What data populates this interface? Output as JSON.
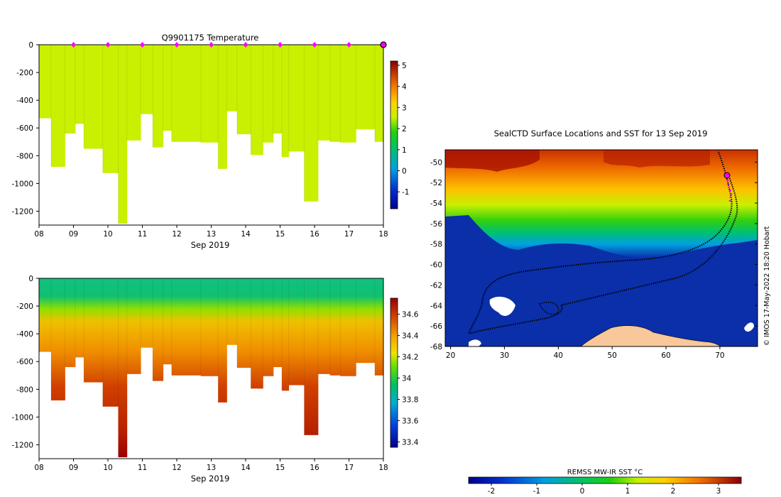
{
  "chart_data": [
    {
      "type": "heatmap",
      "title": "Q9901175  Temperature",
      "xlabel": "Sep 2019",
      "x_ticks": [
        "08",
        "09",
        "10",
        "11",
        "12",
        "13",
        "14",
        "15",
        "16",
        "17",
        "18"
      ],
      "xlim": [
        8,
        18
      ],
      "ylim": [
        -1300,
        0
      ],
      "y_ticks": [
        0,
        -200,
        -400,
        -600,
        -800,
        -1000,
        -1200
      ],
      "colorbar": {
        "ticks": [
          5,
          4,
          3,
          2,
          1,
          0,
          -1
        ],
        "range": [
          -1.8,
          5.2
        ]
      },
      "markers_x": [
        9,
        10,
        11,
        12,
        13,
        14,
        15,
        16,
        17
      ],
      "current_profile_x": 18,
      "profiles": [
        {
          "day": 8.0,
          "depth": 530
        },
        {
          "day": 8.35,
          "depth": 880
        },
        {
          "day": 8.75,
          "depth": 640
        },
        {
          "day": 9.05,
          "depth": 570
        },
        {
          "day": 9.3,
          "depth": 750
        },
        {
          "day": 9.85,
          "depth": 925
        },
        {
          "day": 10.3,
          "depth": 1290
        },
        {
          "day": 10.55,
          "depth": 690
        },
        {
          "day": 10.95,
          "depth": 500
        },
        {
          "day": 11.3,
          "depth": 740
        },
        {
          "day": 11.6,
          "depth": 620
        },
        {
          "day": 11.85,
          "depth": 700
        },
        {
          "day": 12.7,
          "depth": 705
        },
        {
          "day": 13.2,
          "depth": 895
        },
        {
          "day": 13.45,
          "depth": 480
        },
        {
          "day": 13.75,
          "depth": 645
        },
        {
          "day": 14.15,
          "depth": 795
        },
        {
          "day": 14.5,
          "depth": 705
        },
        {
          "day": 14.8,
          "depth": 640
        },
        {
          "day": 15.05,
          "depth": 810
        },
        {
          "day": 15.25,
          "depth": 770
        },
        {
          "day": 15.7,
          "depth": 1130
        },
        {
          "day": 16.1,
          "depth": 690
        },
        {
          "day": 16.45,
          "depth": 700
        },
        {
          "day": 16.75,
          "depth": 705
        },
        {
          "day": 17.2,
          "depth": 610
        },
        {
          "day": 17.75,
          "depth": 700
        }
      ]
    },
    {
      "type": "heatmap",
      "title": "",
      "xlabel": "Sep 2019",
      "x_ticks": [
        "08",
        "09",
        "10",
        "11",
        "12",
        "13",
        "14",
        "15",
        "16",
        "17",
        "18"
      ],
      "xlim": [
        8,
        18
      ],
      "ylim": [
        -1300,
        0
      ],
      "y_ticks": [
        0,
        -200,
        -400,
        -600,
        -800,
        -1000,
        -1200
      ],
      "colorbar": {
        "ticks": [
          "34.6",
          "34.4",
          "34.2",
          "34",
          "33.8",
          "33.6",
          "33.4"
        ],
        "range": [
          33.35,
          34.75
        ]
      }
    },
    {
      "type": "heatmap",
      "title": "SealCTD Surface Locations and SST for 13 Sep 2019",
      "x_ticks": [
        20,
        30,
        40,
        50,
        60,
        70
      ],
      "y_ticks": [
        -50,
        -52,
        -54,
        -56,
        -58,
        -60,
        -62,
        -64,
        -66,
        -68
      ],
      "xlim": [
        19,
        77
      ],
      "ylim": [
        -68,
        -48.8
      ],
      "colorbar": {
        "label": "REMSS MW-IR SST °C",
        "ticks": [
          -2,
          -1,
          0,
          1,
          2,
          3
        ],
        "range": [
          -2.5,
          3.5
        ]
      }
    }
  ],
  "credit": "© IMOS 17-May-2022 18:20 Hobart",
  "colors": {
    "marker": "#ff00ff",
    "ice_ocean": "#0a2fa8",
    "land": "#f8c89a"
  }
}
